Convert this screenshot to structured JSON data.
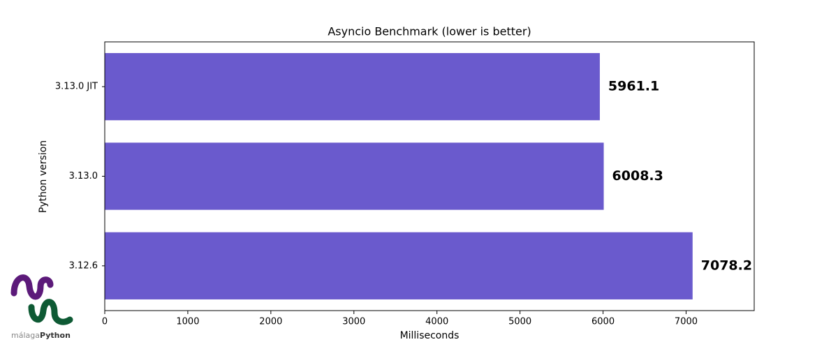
{
  "chart_data": {
    "type": "barh",
    "title": "Asyncio Benchmark (lower is better)",
    "x_label": "Milliseconds",
    "y_label": "Python version",
    "categories": [
      "3.13.0 JIT",
      "3.13.0",
      "3.12.6"
    ],
    "values": [
      5961.1,
      6008.3,
      7078.2
    ],
    "color": "#6a5acd",
    "xlim": [
      0,
      7820
    ],
    "xticks": [
      0,
      1000,
      2000,
      3000,
      4000,
      5000,
      6000,
      7000
    ]
  },
  "logo": {
    "text_light": "málaga",
    "text_bold": "Python"
  }
}
